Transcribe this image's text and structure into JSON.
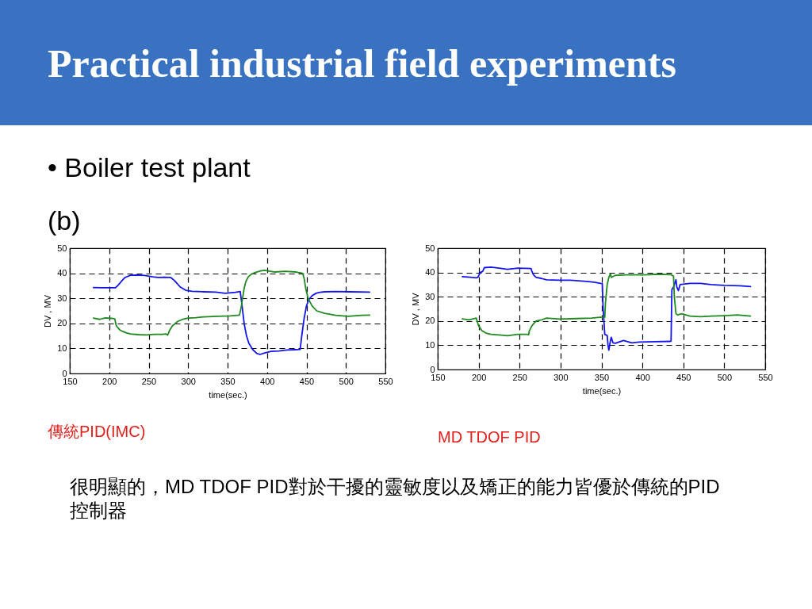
{
  "chart_data": [
    {
      "type": "other",
      "title": "Practical industrial field experiments",
      "subtitle": "• Boiler test plant",
      "annotations": [
        "(b)"
      ]
    },
    {
      "type": "line",
      "xlabel": "time(sec.)",
      "ylabel": "DV , MV",
      "xlim": [
        150,
        550
      ],
      "ylim": [
        0,
        50
      ],
      "xticks": [
        150,
        200,
        250,
        300,
        350,
        400,
        450,
        500,
        550
      ],
      "yticks": [
        0,
        10,
        20,
        30,
        40,
        50
      ],
      "grid": true,
      "annotations": [
        "傳統PID(IMC)"
      ],
      "series": [
        {
          "color": "#1414f0",
          "x": [
            180,
            190,
            200,
            208,
            212,
            216,
            220,
            227,
            235,
            245,
            255,
            262,
            270,
            278,
            283,
            290,
            297,
            305,
            320,
            335,
            347,
            360,
            366,
            368,
            371,
            374,
            377,
            382,
            387,
            391,
            397,
            405,
            415,
            425,
            435,
            442,
            444,
            447,
            450,
            453,
            457,
            462,
            467,
            473,
            487,
            505,
            530
          ],
          "values": [
            34.3,
            34.2,
            34.2,
            34.2,
            35.5,
            37,
            38.3,
            39.2,
            39.3,
            39.1,
            38.6,
            38.3,
            38.4,
            38.3,
            37,
            34.5,
            33.2,
            32.8,
            32.6,
            32.5,
            32.0,
            32.4,
            32.7,
            28,
            20,
            15,
            12,
            9.5,
            8,
            7.6,
            8.2,
            8.8,
            9,
            9.4,
            9.5,
            9.6,
            15,
            22,
            27,
            29.5,
            31,
            32,
            32.4,
            32.6,
            32.7,
            32.6,
            32.5
          ]
        },
        {
          "color": "#1f8a1f",
          "x": [
            180,
            188,
            195,
            203,
            207,
            209,
            213,
            217,
            222,
            227,
            237,
            247,
            257,
            267,
            272,
            274,
            277,
            280,
            287,
            293,
            300,
            310,
            320,
            337,
            353,
            365,
            367,
            369,
            371,
            373,
            376,
            380,
            385,
            393,
            397,
            410,
            423,
            437,
            445,
            447,
            449,
            452,
            457,
            463,
            473,
            487,
            503,
            520,
            530
          ],
          "values": [
            22.1,
            21.6,
            22.2,
            22.0,
            21.8,
            19,
            17.5,
            16.8,
            16.2,
            15.8,
            15.5,
            15.4,
            15.6,
            15.6,
            15.8,
            15.3,
            17.5,
            19,
            20.8,
            21.6,
            22.1,
            22.3,
            22.6,
            22.8,
            23,
            23.3,
            26,
            30,
            34,
            36.5,
            38.5,
            39.6,
            40.3,
            41,
            41.2,
            40.5,
            40.8,
            40.5,
            40,
            38,
            34,
            30,
            27,
            25,
            24,
            23.2,
            22.8,
            23.2,
            23.3
          ]
        }
      ]
    },
    {
      "type": "line",
      "xlabel": "time(sec.)",
      "ylabel": "DV , MV",
      "xlim": [
        150,
        550
      ],
      "ylim": [
        0,
        50
      ],
      "xticks": [
        150,
        200,
        250,
        300,
        350,
        400,
        450,
        500,
        550
      ],
      "yticks": [
        0,
        10,
        20,
        30,
        40,
        50
      ],
      "grid": true,
      "annotations": [
        "MD TDOF PID"
      ],
      "series": [
        {
          "color": "#1414f0",
          "x": [
            180,
            190,
            197,
            199,
            202,
            205,
            207,
            215,
            225,
            235,
            248,
            264,
            265,
            267,
            270,
            277,
            283,
            299,
            312,
            332,
            341,
            349,
            351,
            352,
            353,
            354,
            357,
            358,
            359,
            361,
            362,
            364,
            367,
            377,
            387,
            396,
            416,
            434,
            435,
            436,
            438,
            441,
            442,
            444,
            446,
            458,
            471,
            484,
            500,
            519,
            532
          ],
          "values": [
            38.3,
            38,
            37.8,
            38,
            40,
            40.5,
            42,
            42.2,
            41.8,
            41.3,
            41.8,
            41.6,
            40.5,
            39,
            38,
            37.5,
            37,
            36.8,
            36.8,
            36.3,
            36,
            35.5,
            35.4,
            25,
            20,
            14.5,
            14,
            10,
            8,
            12,
            13.3,
            11,
            10.8,
            12,
            11,
            11.3,
            11.5,
            11.6,
            11.7,
            33,
            34,
            37,
            34,
            32.5,
            35,
            35.5,
            35.5,
            35,
            34.7,
            34.5,
            34.2
          ]
        },
        {
          "color": "#1f8a1f",
          "x": [
            180,
            188,
            197,
            199,
            200,
            204,
            209,
            215,
            228,
            235,
            248,
            259,
            261,
            262,
            265,
            270,
            277,
            283,
            299,
            319,
            338,
            348,
            354,
            355,
            357,
            359,
            361,
            362,
            367,
            380,
            403,
            419,
            435,
            438,
            439,
            441,
            443,
            448,
            458,
            471,
            484,
            500,
            516,
            532
          ],
          "values": [
            20.9,
            20.5,
            21.2,
            19,
            18,
            16,
            15,
            14.5,
            14.2,
            13.9,
            14.5,
            14.5,
            14.3,
            16,
            18,
            20,
            20.5,
            21.2,
            20.8,
            21,
            21.2,
            21.5,
            21.5,
            28,
            35,
            38,
            39.5,
            38,
            38.8,
            39,
            39,
            39.3,
            39.1,
            38.5,
            30,
            23,
            22.5,
            23,
            22,
            21.8,
            22,
            22.2,
            22.5,
            22
          ]
        }
      ]
    },
    {
      "type": "other",
      "annotations": [
        "很明顯的，MD TDOF PID對於干擾的靈敏度以及矯正的能力皆優於傳統的PID控制器"
      ]
    }
  ]
}
